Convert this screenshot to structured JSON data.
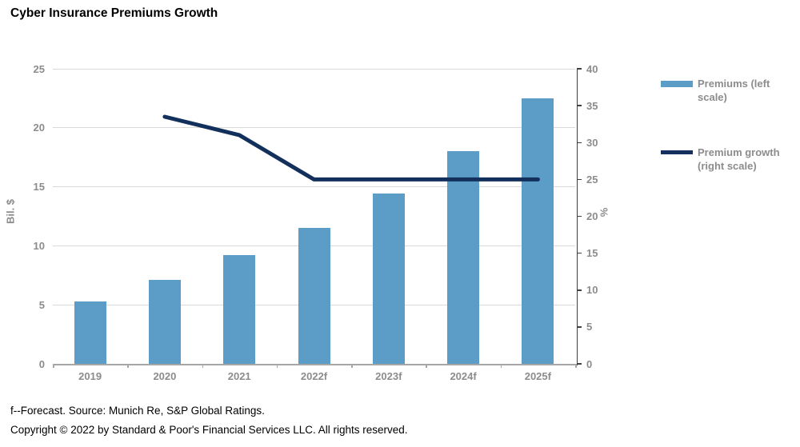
{
  "title": "Cyber Insurance Premiums Growth",
  "colors": {
    "bar": "#5B9DC6",
    "line": "#12305B",
    "axis_text": "#8C8C8C",
    "gridline": "#D9D9D9",
    "bottom_axis": "#A6A6A6",
    "right_axis": "#404040"
  },
  "chart_data": {
    "type": "bar+line combo",
    "title": "Cyber Insurance Premiums Growth",
    "categories": [
      "2019",
      "2020",
      "2021",
      "2022f",
      "2023f",
      "2024f",
      "2025f"
    ],
    "series": [
      {
        "name": "Premiums (left scale)",
        "type": "bar",
        "axis": "left",
        "values": [
          5.3,
          7.1,
          9.2,
          11.5,
          14.4,
          18,
          22.5
        ]
      },
      {
        "name": "Premium growth (right scale)",
        "type": "line",
        "axis": "right",
        "values": [
          null,
          33.5,
          31,
          25,
          25,
          25,
          25
        ]
      }
    ],
    "left_axis": {
      "label": "Bil. $",
      "min": 0,
      "max": 25,
      "ticks": [
        0,
        5,
        10,
        15,
        20,
        25
      ]
    },
    "right_axis": {
      "label": "%",
      "min": 0,
      "max": 40,
      "ticks": [
        0,
        5,
        10,
        15,
        20,
        25,
        30,
        35,
        40
      ]
    },
    "grid": true,
    "legend_position": "right"
  },
  "legend": {
    "items": [
      {
        "label": "Premiums (left scale)",
        "type": "bar"
      },
      {
        "label": "Premium growth (right scale)",
        "type": "line"
      }
    ]
  },
  "footer": {
    "line1": "f--Forecast. Source: Munich Re, S&P Global Ratings.",
    "line2": "Copyright © 2022 by Standard & Poor's Financial Services LLC. All rights reserved."
  }
}
